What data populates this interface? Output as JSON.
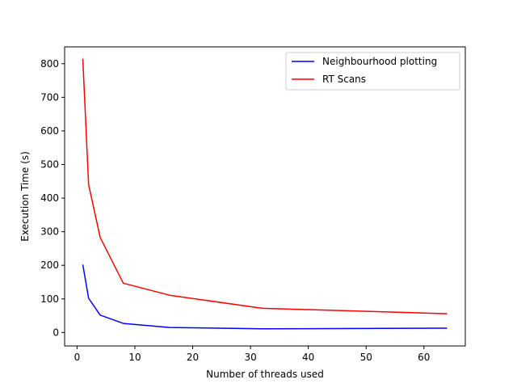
{
  "chart_data": {
    "type": "line",
    "title": "",
    "xlabel": "Number of threads used",
    "ylabel": "Execution Time (s)",
    "xlim": [
      -2.15,
      67.15
    ],
    "ylim": [
      -40,
      850
    ],
    "xticks": [
      0,
      10,
      20,
      30,
      40,
      50,
      60
    ],
    "yticks": [
      0,
      100,
      200,
      300,
      400,
      500,
      600,
      700,
      800
    ],
    "grid": false,
    "legend_position": "top-right",
    "series": [
      {
        "name": "Neighbourhood plotting",
        "color": "#0000ff",
        "x": [
          1,
          2,
          4,
          8,
          16,
          32,
          64
        ],
        "y": [
          202,
          102,
          52,
          27,
          15,
          11,
          13
        ]
      },
      {
        "name": "RT Scans",
        "color": "#ff0000",
        "x": [
          1,
          2,
          4,
          8,
          16,
          32,
          64
        ],
        "y": [
          815,
          440,
          283,
          147,
          111,
          72,
          56
        ]
      }
    ]
  }
}
